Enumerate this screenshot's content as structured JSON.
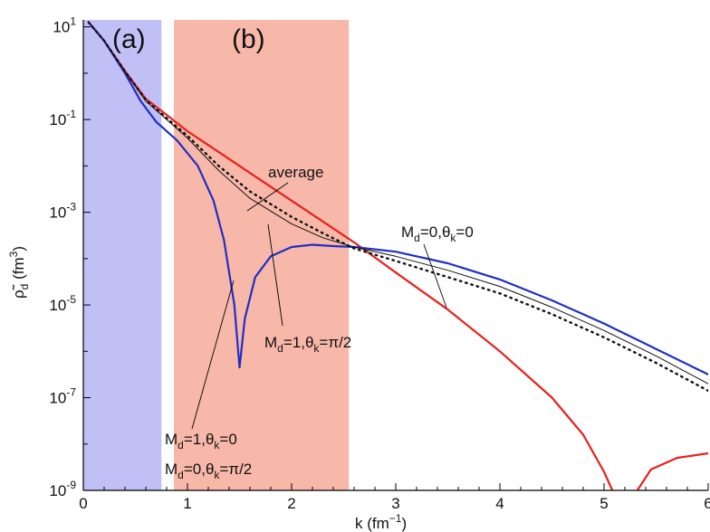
{
  "chart_data": {
    "type": "line",
    "xlabel_main": "k (fm",
    "xlabel_exp": "−1",
    "xlabel_close": ")",
    "ylabel_main": "ρ̃",
    "ylabel_sub": "d",
    "ylabel_unit": " (fm",
    "ylabel_exp": "3",
    "ylabel_close": ")",
    "xlim": [
      0,
      6
    ],
    "ylim_log10": [
      -9,
      1.15
    ],
    "y_scale": "log",
    "x_ticks": [
      "0",
      "1",
      "2",
      "3",
      "4",
      "5",
      "6"
    ],
    "y_ticks": [
      {
        "base": "10",
        "exp": "1"
      },
      {
        "base": "10",
        "exp": "-1"
      },
      {
        "base": "10",
        "exp": "-3"
      },
      {
        "base": "10",
        "exp": "-5"
      },
      {
        "base": "10",
        "exp": "-7"
      },
      {
        "base": "10",
        "exp": "-9"
      }
    ],
    "regions": [
      {
        "label": "(a)",
        "x_range": [
          0,
          0.75
        ],
        "color": "#c0c0f6"
      },
      {
        "label": "(b)",
        "x_range": [
          0.87,
          2.55
        ],
        "color": "#f7b8aa"
      }
    ],
    "annotations": {
      "average": "average",
      "md1_theta_pi2": {
        "M": "M",
        "sub": "d",
        "rest": "=1,θ",
        "sub2": "k",
        "tail": "=π/2"
      },
      "md1_theta0": {
        "M": "M",
        "sub": "d",
        "rest": "=1,θ",
        "sub2": "k",
        "tail": "=0"
      },
      "md0_theta_pi2": {
        "M": "M",
        "sub": "d",
        "rest": "=0,θ",
        "sub2": "k",
        "tail": "=π/2"
      },
      "md0_theta0": {
        "M": "M",
        "sub": "d",
        "rest": "=0,θ",
        "sub2": "k",
        "tail": "=0"
      }
    },
    "series": [
      {
        "color": "#e8201a",
        "style": "solid",
        "points_log10": [
          [
            0.05,
            1.1
          ],
          [
            0.2,
            0.7
          ],
          [
            0.4,
            0.05
          ],
          [
            0.6,
            -0.55
          ],
          [
            0.8,
            -0.9
          ],
          [
            1.0,
            -1.25
          ],
          [
            1.2,
            -1.55
          ],
          [
            1.5,
            -2.0
          ],
          [
            2.0,
            -2.75
          ],
          [
            2.5,
            -3.5
          ],
          [
            2.6,
            -3.65
          ],
          [
            3.0,
            -4.3
          ],
          [
            3.5,
            -5.1
          ],
          [
            4.0,
            -6.0
          ],
          [
            4.5,
            -7.0
          ],
          [
            4.8,
            -7.8
          ],
          [
            5.0,
            -8.6
          ],
          [
            5.08,
            -9.0
          ]
        ]
      },
      {
        "color": "#e8201a",
        "style": "solid",
        "points_log10": [
          [
            5.32,
            -9.0
          ],
          [
            5.45,
            -8.55
          ],
          [
            5.7,
            -8.3
          ],
          [
            6.0,
            -8.2
          ]
        ]
      },
      {
        "color": "#1f2fc4",
        "style": "solid",
        "points_log10": [
          [
            0.05,
            1.1
          ],
          [
            0.2,
            0.7
          ],
          [
            0.4,
            0.0
          ],
          [
            0.55,
            -0.6
          ],
          [
            0.7,
            -1.05
          ],
          [
            0.9,
            -1.45
          ],
          [
            1.1,
            -2.0
          ],
          [
            1.25,
            -2.75
          ],
          [
            1.35,
            -3.6
          ],
          [
            1.45,
            -5.0
          ],
          [
            1.5,
            -6.35
          ],
          [
            1.55,
            -5.3
          ],
          [
            1.65,
            -4.4
          ],
          [
            1.8,
            -3.95
          ],
          [
            2.0,
            -3.75
          ],
          [
            2.2,
            -3.7
          ],
          [
            2.4,
            -3.73
          ],
          [
            2.6,
            -3.75
          ],
          [
            3.0,
            -3.85
          ],
          [
            3.5,
            -4.1
          ],
          [
            4.0,
            -4.45
          ],
          [
            4.5,
            -4.9
          ],
          [
            5.0,
            -5.4
          ],
          [
            5.5,
            -5.95
          ],
          [
            6.0,
            -6.5
          ]
        ]
      },
      {
        "color": "#111111",
        "style": "solid",
        "points_log10": [
          [
            0.05,
            1.1
          ],
          [
            0.2,
            0.7
          ],
          [
            0.4,
            0.03
          ],
          [
            0.6,
            -0.6
          ],
          [
            0.8,
            -1.0
          ],
          [
            1.0,
            -1.4
          ],
          [
            1.3,
            -2.1
          ],
          [
            1.6,
            -2.7
          ],
          [
            2.0,
            -3.25
          ],
          [
            2.3,
            -3.55
          ],
          [
            2.6,
            -3.75
          ],
          [
            3.0,
            -3.95
          ],
          [
            3.5,
            -4.25
          ],
          [
            4.0,
            -4.6
          ],
          [
            4.5,
            -5.05
          ],
          [
            5.0,
            -5.55
          ],
          [
            5.5,
            -6.1
          ],
          [
            6.0,
            -6.7
          ]
        ]
      },
      {
        "color": "#111111",
        "style": "dotted",
        "points_log10": [
          [
            0.05,
            1.1
          ],
          [
            0.2,
            0.7
          ],
          [
            0.4,
            0.04
          ],
          [
            0.6,
            -0.58
          ],
          [
            0.8,
            -0.97
          ],
          [
            1.0,
            -1.35
          ],
          [
            1.3,
            -2.0
          ],
          [
            1.6,
            -2.55
          ],
          [
            2.0,
            -3.1
          ],
          [
            2.3,
            -3.45
          ],
          [
            2.6,
            -3.78
          ],
          [
            3.0,
            -4.05
          ],
          [
            3.5,
            -4.4
          ],
          [
            4.0,
            -4.75
          ],
          [
            4.5,
            -5.2
          ],
          [
            5.0,
            -5.7
          ],
          [
            5.5,
            -6.25
          ],
          [
            6.0,
            -6.85
          ]
        ]
      }
    ]
  }
}
